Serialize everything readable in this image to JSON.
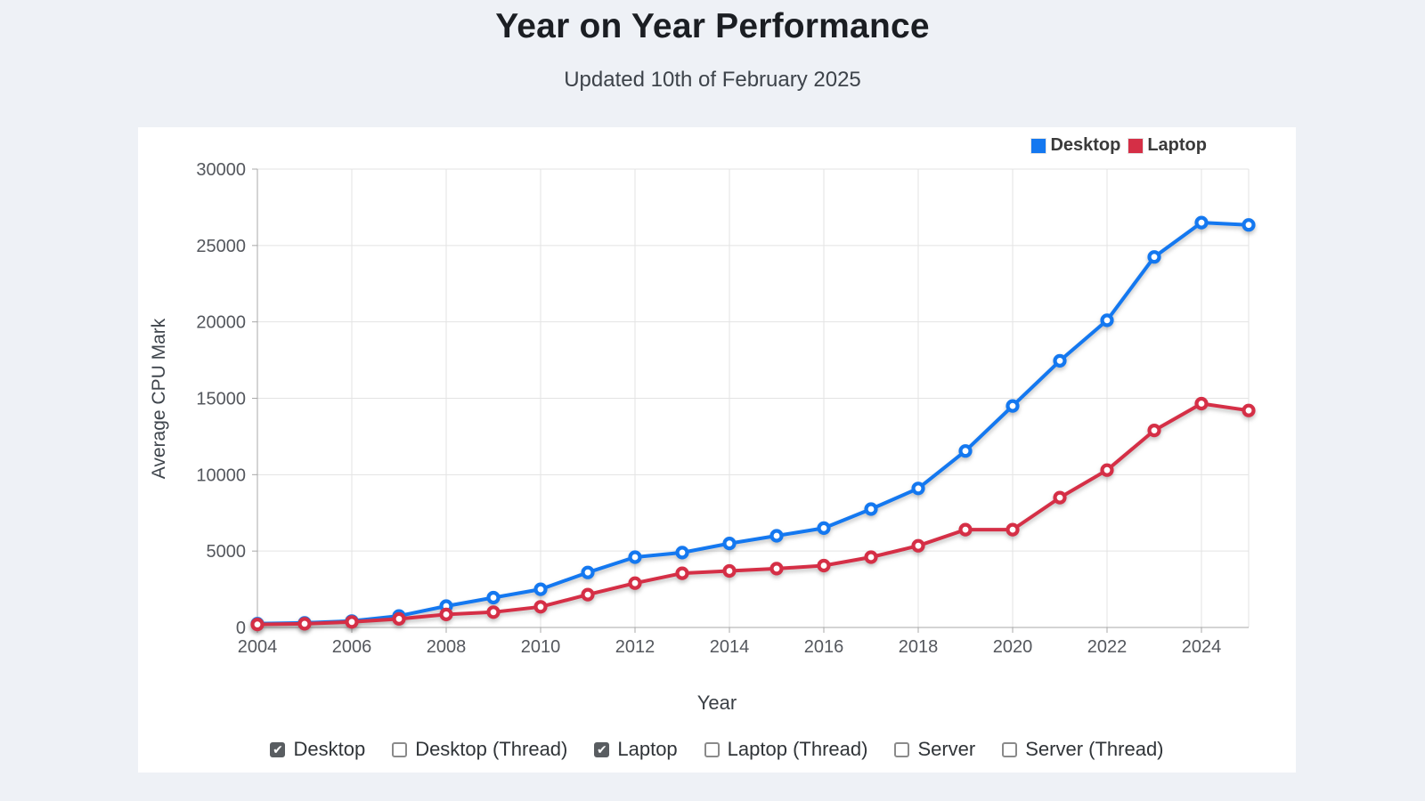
{
  "page": {
    "title": "Year on Year Performance",
    "subtitle": "Updated 10th of February 2025"
  },
  "chart_data": {
    "type": "line",
    "title": "Year on Year Performance",
    "subtitle": "Updated 10th of February 2025",
    "xlabel": "Year",
    "ylabel": "Average CPU Mark",
    "x": [
      2004,
      2005,
      2006,
      2007,
      2008,
      2009,
      2010,
      2011,
      2012,
      2013,
      2014,
      2015,
      2016,
      2017,
      2018,
      2019,
      2020,
      2021,
      2022,
      2023,
      2024,
      2025
    ],
    "x_axis_tick_labels": [
      "2004",
      "2006",
      "2008",
      "2010",
      "2012",
      "2014",
      "2016",
      "2018",
      "2020",
      "2022",
      "2024"
    ],
    "y_ticks": [
      0,
      5000,
      10000,
      15000,
      20000,
      25000,
      30000
    ],
    "ylim": [
      0,
      30000
    ],
    "xlim": [
      2004,
      2025
    ],
    "grid": true,
    "legend_position": "top-right",
    "series": [
      {
        "name": "Desktop",
        "color": "#1478f0",
        "values": [
          250,
          300,
          420,
          750,
          1400,
          1950,
          2500,
          3600,
          4600,
          4900,
          5500,
          6000,
          6500,
          7750,
          9100,
          11550,
          14500,
          17450,
          20100,
          24250,
          26500,
          26350
        ]
      },
      {
        "name": "Laptop",
        "color": "#d52f46",
        "values": [
          200,
          240,
          360,
          560,
          850,
          1000,
          1350,
          2150,
          2900,
          3550,
          3700,
          3850,
          4050,
          4600,
          5350,
          6400,
          6400,
          8500,
          10300,
          12900,
          14650,
          14200
        ]
      }
    ]
  },
  "controls": {
    "items": [
      {
        "label": "Desktop",
        "checked": true
      },
      {
        "label": "Desktop (Thread)",
        "checked": false
      },
      {
        "label": "Laptop",
        "checked": true
      },
      {
        "label": "Laptop (Thread)",
        "checked": false
      },
      {
        "label": "Server",
        "checked": false
      },
      {
        "label": "Server (Thread)",
        "checked": false
      }
    ]
  }
}
